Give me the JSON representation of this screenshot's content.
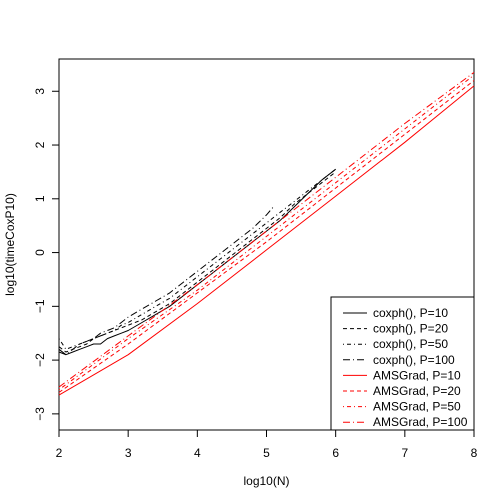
{
  "chart_data": {
    "type": "line",
    "title": "",
    "xlabel": "log10(N)",
    "ylabel": "log10(timeCoxP10)",
    "xlim": [
      2,
      8
    ],
    "ylim": [
      -3.3,
      3.6
    ],
    "x_ticks": [
      2,
      3,
      4,
      5,
      6,
      7,
      8
    ],
    "y_ticks": [
      -3,
      -2,
      -1,
      0,
      1,
      2,
      3
    ],
    "y_tick_labels": [
      "−3",
      "−2",
      "−1",
      "0",
      "1",
      "2",
      "3"
    ],
    "grid": false,
    "legend_position": "bottom-right",
    "series": [
      {
        "name": "coxph(), P=10",
        "color": "#000000",
        "dash": "solid",
        "x": [
          2.0,
          2.1,
          2.2,
          2.3,
          2.4,
          2.5,
          2.6,
          2.7,
          2.8,
          2.9,
          3.0,
          3.2,
          3.4,
          3.6,
          3.8,
          4.0,
          4.2,
          4.4,
          4.6,
          4.8,
          5.0,
          5.2,
          5.4,
          5.6,
          5.8,
          6.0
        ],
        "y": [
          -1.8,
          -1.9,
          -1.85,
          -1.8,
          -1.75,
          -1.7,
          -1.7,
          -1.6,
          -1.55,
          -1.5,
          -1.45,
          -1.3,
          -1.15,
          -1.0,
          -0.8,
          -0.6,
          -0.4,
          -0.2,
          0.0,
          0.2,
          0.4,
          0.6,
          0.85,
          1.1,
          1.35,
          1.55
        ]
      },
      {
        "name": "coxph(), P=20",
        "color": "#000000",
        "dash": "dashed",
        "x": [
          2.0,
          2.1,
          2.2,
          2.3,
          2.4,
          2.5,
          2.6,
          2.7,
          2.8,
          2.9,
          3.0,
          3.2,
          3.4,
          3.6,
          3.8,
          4.0,
          4.2,
          4.4,
          4.6,
          4.8,
          5.0,
          5.2,
          5.4,
          5.6,
          5.8,
          6.0
        ],
        "y": [
          -1.75,
          -1.85,
          -1.8,
          -1.75,
          -1.7,
          -1.6,
          -1.55,
          -1.5,
          -1.45,
          -1.4,
          -1.35,
          -1.25,
          -1.1,
          -0.95,
          -0.75,
          -0.55,
          -0.35,
          -0.15,
          0.05,
          0.25,
          0.45,
          0.65,
          0.9,
          1.1,
          1.3,
          1.5
        ]
      },
      {
        "name": "coxph(), P=50",
        "color": "#000000",
        "dash": "dotdash",
        "x": [
          2.0,
          2.1,
          2.2,
          2.3,
          2.4,
          2.5,
          2.6,
          2.7,
          2.8,
          2.9,
          3.0,
          3.2,
          3.4,
          3.6,
          3.8,
          4.0,
          4.2,
          4.4,
          4.6,
          4.8,
          5.0,
          5.2,
          5.4,
          5.6,
          5.8,
          6.0
        ],
        "y": [
          -1.6,
          -1.8,
          -1.75,
          -1.7,
          -1.65,
          -1.6,
          -1.55,
          -1.5,
          -1.45,
          -1.35,
          -1.3,
          -1.15,
          -1.0,
          -0.85,
          -0.65,
          -0.45,
          -0.25,
          -0.05,
          0.15,
          0.35,
          0.55,
          0.75,
          0.95,
          1.15,
          1.35,
          1.55
        ]
      },
      {
        "name": "coxph(), P=100",
        "color": "#000000",
        "dash": "longdash-dot",
        "x": [
          2.0,
          2.1,
          2.2,
          2.3,
          2.4,
          2.5,
          2.6,
          2.7,
          2.8,
          2.9,
          3.0,
          3.2,
          3.4,
          3.6,
          3.8,
          4.0,
          4.2,
          4.4,
          4.6,
          4.8,
          5.0,
          5.1
        ],
        "y": [
          -1.85,
          -1.9,
          -1.8,
          -1.7,
          -1.65,
          -1.6,
          -1.5,
          -1.45,
          -1.4,
          -1.3,
          -1.2,
          -1.05,
          -0.9,
          -0.75,
          -0.55,
          -0.35,
          -0.15,
          0.05,
          0.25,
          0.45,
          0.7,
          0.85
        ]
      },
      {
        "name": "AMSGrad, P=10",
        "color": "#ff0000",
        "dash": "solid",
        "x": [
          2.0,
          3.0,
          4.0,
          5.0,
          6.0,
          7.0,
          8.0
        ],
        "y": [
          -2.65,
          -1.9,
          -0.95,
          0.05,
          1.05,
          2.05,
          3.1
        ]
      },
      {
        "name": "AMSGrad, P=20",
        "color": "#ff0000",
        "dash": "dashed",
        "x": [
          2.0,
          3.0,
          4.0,
          5.0,
          6.0,
          7.0,
          8.0
        ],
        "y": [
          -2.6,
          -1.7,
          -0.75,
          0.2,
          1.2,
          2.2,
          3.2
        ]
      },
      {
        "name": "AMSGrad, P=50",
        "color": "#ff0000",
        "dash": "dotdash",
        "x": [
          2.0,
          3.0,
          4.0,
          5.0,
          6.0,
          7.0,
          8.0
        ],
        "y": [
          -2.55,
          -1.6,
          -0.7,
          0.3,
          1.3,
          2.3,
          3.3
        ]
      },
      {
        "name": "AMSGrad, P=100",
        "color": "#ff0000",
        "dash": "longdash-dot",
        "x": [
          2.0,
          3.0,
          4.0,
          5.0,
          6.0,
          7.0,
          8.0
        ],
        "y": [
          -2.5,
          -1.55,
          -0.6,
          0.4,
          1.4,
          2.4,
          3.35
        ]
      }
    ]
  }
}
